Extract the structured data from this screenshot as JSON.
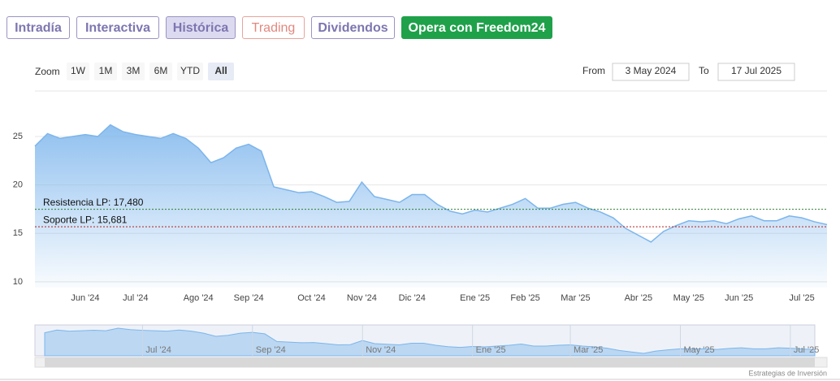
{
  "tabs": [
    "Intradía",
    "Interactiva",
    "Histórica",
    "Trading",
    "Dividendos",
    "Opera con Freedom24"
  ],
  "range_selector": {
    "label": "Zoom",
    "buttons": [
      "1W",
      "1M",
      "3M",
      "6M",
      "YTD",
      "All"
    ],
    "from_label": "From",
    "from": "3 May 2024",
    "to_label": "To",
    "to": "17 Jul 2025"
  },
  "chart_data": {
    "type": "area",
    "categories": [
      null,
      null,
      null,
      null,
      "Jun '24",
      null,
      null,
      null,
      "Jul '24",
      null,
      null,
      null,
      null,
      "Ago '24",
      null,
      null,
      null,
      "Sep '24",
      null,
      null,
      null,
      null,
      "Oct '24",
      null,
      null,
      null,
      "Nov '24",
      null,
      null,
      null,
      "Dic '24",
      null,
      null,
      null,
      null,
      "Ene '25",
      null,
      null,
      null,
      "Feb '25",
      null,
      null,
      null,
      "Mar '25",
      null,
      null,
      null,
      null,
      "Abr '25",
      null,
      null,
      null,
      "May '25",
      null,
      null,
      null,
      "Jun '25",
      null,
      null,
      null,
      null,
      "Jul '25",
      null,
      null
    ],
    "series": [
      {
        "color": "#7cb5ec",
        "values": [
          24.0,
          25.3,
          24.8,
          25.0,
          25.2,
          25.0,
          26.2,
          25.5,
          25.2,
          25.0,
          24.8,
          25.3,
          24.8,
          23.8,
          22.3,
          22.8,
          23.8,
          24.2,
          23.5,
          19.8,
          19.5,
          19.2,
          19.3,
          18.8,
          18.2,
          18.3,
          20.3,
          18.8,
          18.5,
          18.2,
          19.0,
          19.0,
          18.0,
          17.3,
          17.0,
          17.4,
          17.2,
          17.6,
          18.0,
          18.6,
          17.6,
          17.6,
          18.0,
          18.2,
          17.6,
          17.2,
          16.6,
          15.5,
          14.8,
          14.1,
          15.2,
          15.8,
          16.3,
          16.2,
          16.3,
          16.0,
          16.5,
          16.8,
          16.3,
          16.3,
          16.8,
          16.6,
          16.2,
          15.9
        ]
      }
    ],
    "ylim": [
      9.4,
      29.7
    ],
    "yticks": [
      10,
      15,
      20,
      25
    ],
    "grid": true,
    "plot_lines": [
      {
        "label": "Resistencia LP: 17,480",
        "value": 17.48,
        "color": "#2e7d32"
      },
      {
        "label": "Soporte LP: 15,681",
        "value": 15.681,
        "color": "#b71c1c"
      }
    ]
  },
  "credits": "Estrategias de Inversión"
}
